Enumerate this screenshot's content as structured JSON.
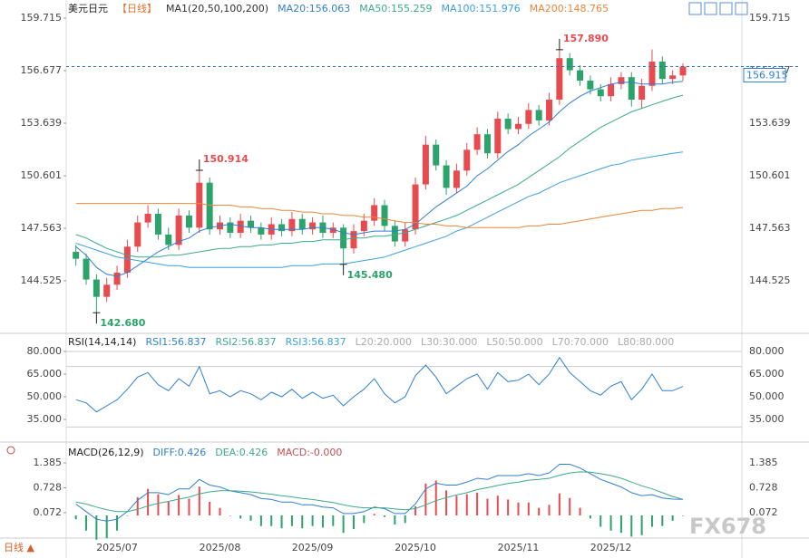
{
  "watermark": "FX678",
  "footer": "日线 ▲",
  "chart_data": [
    {
      "type": "candlestick",
      "title": "美元日元",
      "period": "【日线】",
      "indicator": "MA1(20,50,100,200)",
      "up_color": "#e84b4f",
      "down_color": "#2ba36a",
      "categories": [
        null,
        null,
        null,
        null,
        "2025/07",
        null,
        null,
        null,
        null,
        null,
        null,
        null,
        null,
        null,
        "2025/08",
        null,
        null,
        null,
        null,
        null,
        null,
        null,
        null,
        "2025/09",
        null,
        null,
        null,
        null,
        null,
        null,
        null,
        null,
        null,
        "2025/10",
        null,
        null,
        null,
        null,
        null,
        null,
        null,
        null,
        null,
        "2025/11",
        null,
        null,
        null,
        null,
        null,
        null,
        null,
        null,
        "2025/12",
        null,
        null,
        null,
        null,
        null,
        null,
        null
      ],
      "open": [
        146.2,
        145.8,
        144.6,
        143.6,
        144.3,
        145.0,
        146.5,
        147.9,
        148.4,
        147.2,
        146.6,
        148.3,
        147.6,
        150.2,
        147.5,
        147.9,
        147.3,
        148.0,
        147.6,
        147.2,
        147.8,
        147.4,
        148.1,
        147.5,
        147.9,
        147.3,
        147.6,
        146.4,
        147.4,
        148.0,
        148.9,
        147.7,
        146.8,
        147.5,
        150.1,
        152.4,
        151.2,
        149.9,
        150.9,
        152.1,
        153.0,
        151.9,
        153.9,
        153.3,
        153.6,
        154.4,
        153.8,
        155.0,
        157.4,
        156.7,
        156.1,
        155.6,
        155.2,
        155.9,
        156.3,
        155.0,
        155.8,
        157.2,
        156.2,
        156.4
      ],
      "high": [
        146.6,
        146.1,
        144.9,
        144.7,
        145.4,
        146.9,
        148.3,
        148.9,
        148.7,
        147.6,
        148.7,
        148.6,
        150.914,
        150.5,
        148.3,
        148.2,
        148.4,
        148.3,
        147.9,
        148.2,
        148.1,
        148.5,
        148.4,
        148.2,
        148.3,
        147.9,
        147.8,
        147.8,
        148.4,
        149.3,
        149.2,
        148.0,
        147.9,
        150.5,
        152.9,
        152.7,
        151.5,
        151.3,
        152.5,
        153.4,
        153.3,
        154.3,
        154.2,
        154.0,
        154.8,
        154.7,
        155.4,
        157.89,
        157.7,
        157.0,
        156.4,
        155.9,
        156.3,
        156.6,
        156.6,
        156.2,
        157.9,
        157.5,
        156.7,
        157.1
      ],
      "low": [
        145.4,
        144.3,
        142.68,
        143.3,
        144.0,
        144.7,
        146.2,
        147.6,
        146.9,
        146.3,
        146.3,
        147.3,
        147.3,
        147.2,
        147.2,
        147.0,
        147.0,
        147.3,
        146.9,
        146.9,
        147.1,
        147.1,
        147.2,
        147.2,
        147.0,
        147.0,
        145.48,
        146.1,
        147.1,
        147.7,
        147.4,
        146.5,
        146.5,
        147.2,
        149.8,
        150.9,
        149.5,
        149.6,
        150.6,
        151.8,
        151.6,
        151.6,
        153.0,
        153.0,
        153.3,
        153.5,
        153.5,
        154.7,
        156.4,
        155.8,
        155.3,
        154.9,
        154.9,
        155.6,
        154.6,
        154.5,
        155.5,
        155.9,
        155.9,
        156.1
      ],
      "close": [
        145.8,
        144.6,
        143.6,
        144.3,
        145.0,
        146.5,
        147.9,
        148.4,
        147.2,
        146.6,
        148.3,
        147.6,
        150.2,
        147.5,
        147.9,
        147.3,
        148.0,
        147.6,
        147.2,
        147.8,
        147.4,
        148.1,
        147.5,
        147.9,
        147.3,
        147.6,
        146.4,
        147.4,
        148.0,
        148.9,
        147.7,
        146.8,
        147.5,
        150.1,
        152.4,
        151.2,
        149.9,
        150.9,
        152.1,
        153.0,
        151.9,
        153.9,
        153.3,
        153.6,
        154.4,
        153.8,
        155.0,
        157.4,
        156.7,
        156.1,
        155.6,
        155.2,
        155.9,
        156.3,
        155.0,
        155.8,
        157.2,
        156.2,
        156.4,
        156.915
      ],
      "series": [
        {
          "name": "MA20:156.063",
          "color": "#2f7fd0",
          "values": [
            146.5,
            146.0,
            145.3,
            144.9,
            144.8,
            145.0,
            145.4,
            145.8,
            146.2,
            146.5,
            146.8,
            147.0,
            147.4,
            147.6,
            147.7,
            147.8,
            147.7,
            147.6,
            147.6,
            147.5,
            147.5,
            147.5,
            147.5,
            147.6,
            147.6,
            147.5,
            147.3,
            147.2,
            147.3,
            147.4,
            147.4,
            147.4,
            147.5,
            147.8,
            148.3,
            148.8,
            149.2,
            149.6,
            150.0,
            150.6,
            151.0,
            151.5,
            152.0,
            152.4,
            152.9,
            153.3,
            153.7,
            154.3,
            154.8,
            155.2,
            155.5,
            155.7,
            155.9,
            156.0,
            156.0,
            155.9,
            155.9,
            155.9,
            156.0,
            156.063
          ]
        },
        {
          "name": "MA50:155.259",
          "color": "#3caa8c",
          "values": [
            147.2,
            147.0,
            146.7,
            146.4,
            146.2,
            146.0,
            145.9,
            145.9,
            145.9,
            146.0,
            146.0,
            146.1,
            146.2,
            146.3,
            146.4,
            146.4,
            146.5,
            146.5,
            146.6,
            146.6,
            146.7,
            146.7,
            146.8,
            146.8,
            146.9,
            146.9,
            146.9,
            147.0,
            147.0,
            147.1,
            147.1,
            147.2,
            147.3,
            147.5,
            147.7,
            147.9,
            148.1,
            148.3,
            148.6,
            148.9,
            149.2,
            149.5,
            149.8,
            150.1,
            150.5,
            150.9,
            151.3,
            151.7,
            152.2,
            152.6,
            153.0,
            153.4,
            153.7,
            154.0,
            154.3,
            154.5,
            154.7,
            154.9,
            155.1,
            155.259
          ]
        },
        {
          "name": "MA100:151.976",
          "color": "#3aa0e0",
          "values": [
            146.7,
            146.5,
            146.3,
            146.1,
            145.9,
            145.8,
            145.7,
            145.6,
            145.5,
            145.4,
            145.4,
            145.3,
            145.3,
            145.3,
            145.3,
            145.3,
            145.3,
            145.3,
            145.3,
            145.3,
            145.3,
            145.4,
            145.4,
            145.4,
            145.5,
            145.5,
            145.5,
            145.6,
            145.7,
            145.8,
            145.9,
            146.1,
            146.3,
            146.5,
            146.7,
            146.9,
            147.1,
            147.4,
            147.6,
            147.9,
            148.2,
            148.5,
            148.8,
            149.1,
            149.4,
            149.6,
            149.9,
            150.2,
            150.4,
            150.6,
            150.8,
            151.0,
            151.2,
            151.3,
            151.5,
            151.6,
            151.7,
            151.8,
            151.9,
            151.976
          ]
        },
        {
          "name": "MA200:148.765",
          "color": "#e8863a",
          "values": [
            149.0,
            149.0,
            149.0,
            149.0,
            149.0,
            149.0,
            149.0,
            149.0,
            149.0,
            149.0,
            149.0,
            149.0,
            149.0,
            148.9,
            148.9,
            148.9,
            148.8,
            148.8,
            148.7,
            148.7,
            148.6,
            148.6,
            148.5,
            148.5,
            148.4,
            148.4,
            148.3,
            148.3,
            148.2,
            148.2,
            148.1,
            148.0,
            147.9,
            147.9,
            147.8,
            147.8,
            147.7,
            147.7,
            147.6,
            147.6,
            147.6,
            147.6,
            147.6,
            147.6,
            147.7,
            147.7,
            147.8,
            147.8,
            147.9,
            148.0,
            148.1,
            148.2,
            148.3,
            148.4,
            148.5,
            148.6,
            148.6,
            148.7,
            148.7,
            148.765
          ]
        }
      ],
      "ylim": [
        141.487,
        160.763
      ],
      "yticks": [
        144.525,
        147.563,
        150.601,
        153.639,
        156.677,
        159.715
      ],
      "annotations": [
        {
          "value": 157.89,
          "label": "157.890"
        },
        {
          "value": 150.914,
          "label": "150.914"
        },
        {
          "value": 145.48,
          "label": "145.480"
        },
        {
          "value": 142.68,
          "label": "142.680"
        }
      ],
      "last_price": {
        "value": 156.915,
        "label": "156.915"
      }
    },
    {
      "type": "line",
      "title": "RSI(14,14,14)",
      "series": [
        {
          "name": "RSI1:56.837",
          "color": "#2f7fd0",
          "values": [
            48,
            46,
            40,
            44,
            48,
            55,
            63,
            66,
            58,
            54,
            62,
            57,
            70,
            52,
            54,
            50,
            54,
            52,
            48,
            53,
            50,
            55,
            49,
            53,
            49,
            51,
            44,
            50,
            55,
            62,
            52,
            46,
            50,
            64,
            71,
            63,
            52,
            57,
            62,
            65,
            55,
            66,
            60,
            61,
            65,
            58,
            65,
            76,
            66,
            60,
            54,
            51,
            57,
            60,
            48,
            55,
            65,
            54,
            54,
            56.837
          ]
        }
      ],
      "legend_items": [
        {
          "name": "RSI2:56.837",
          "color": "#3caa8c"
        },
        {
          "name": "RSI3:56.837",
          "color": "#3aa0e0"
        }
      ],
      "levels": [
        {
          "value": 20,
          "label": "L20:20.000"
        },
        {
          "value": 30,
          "label": "L30:30.000"
        },
        {
          "value": 50,
          "label": "L50:50.000"
        },
        {
          "value": 70,
          "label": "L70:70.000"
        },
        {
          "value": 80,
          "label": "L80:80.000"
        }
      ],
      "ylim": [
        21.8,
        90.8
      ],
      "yticks": [
        {
          "value": 35,
          "label": "35.000"
        },
        {
          "value": 50,
          "label": "50.000"
        },
        {
          "value": 65,
          "label": "65.000"
        },
        {
          "value": 80,
          "label": "80.000"
        }
      ]
    },
    {
      "type": "macd",
      "title": "MACD(26,12,9)",
      "up_color": "#e84b4f",
      "down_color": "#2ba36a",
      "series": [
        {
          "name": "DIFF:0.426",
          "color": "#2f7fd0",
          "values": [
            0.3,
            0.1,
            -0.1,
            -0.15,
            -0.1,
            0.1,
            0.4,
            0.6,
            0.6,
            0.55,
            0.7,
            0.7,
            0.95,
            0.8,
            0.75,
            0.65,
            0.6,
            0.55,
            0.45,
            0.42,
            0.35,
            0.35,
            0.28,
            0.28,
            0.22,
            0.2,
            0.05,
            0.05,
            0.1,
            0.22,
            0.18,
            0.05,
            0.05,
            0.3,
            0.7,
            0.85,
            0.8,
            0.8,
            0.88,
            0.98,
            0.95,
            1.05,
            1.05,
            1.05,
            1.1,
            1.05,
            1.12,
            1.35,
            1.35,
            1.25,
            1.1,
            0.95,
            0.85,
            0.75,
            0.6,
            0.52,
            0.55,
            0.46,
            0.43,
            0.426
          ]
        },
        {
          "name": "DEA:0.426",
          "color": "#3caa8c",
          "values": [
            0.35,
            0.3,
            0.22,
            0.15,
            0.1,
            0.1,
            0.16,
            0.25,
            0.32,
            0.37,
            0.43,
            0.48,
            0.57,
            0.62,
            0.65,
            0.65,
            0.64,
            0.62,
            0.59,
            0.56,
            0.52,
            0.49,
            0.45,
            0.42,
            0.38,
            0.34,
            0.28,
            0.23,
            0.2,
            0.2,
            0.2,
            0.17,
            0.15,
            0.18,
            0.28,
            0.39,
            0.47,
            0.54,
            0.6,
            0.68,
            0.73,
            0.79,
            0.84,
            0.88,
            0.93,
            0.95,
            0.98,
            1.06,
            1.12,
            1.15,
            1.14,
            1.1,
            1.05,
            0.98,
            0.88,
            0.78,
            0.7,
            0.6,
            0.5,
            0.426
          ]
        }
      ],
      "histogram": {
        "name": "MACD:-0.000",
        "values": [
          -0.1,
          -0.4,
          -0.64,
          -0.6,
          -0.4,
          0,
          0.48,
          0.7,
          0.56,
          0.36,
          0.54,
          0.44,
          0.76,
          0.36,
          0.2,
          0,
          -0.08,
          -0.14,
          -0.28,
          -0.28,
          -0.34,
          -0.28,
          -0.34,
          -0.28,
          -0.32,
          -0.28,
          -0.46,
          -0.36,
          -0.2,
          0.04,
          -0.04,
          -0.24,
          -0.2,
          0.24,
          0.84,
          0.92,
          0.66,
          0.52,
          0.56,
          0.6,
          0.44,
          0.52,
          0.42,
          0.34,
          0.34,
          0.2,
          0.28,
          0.58,
          0.46,
          0.2,
          -0.08,
          -0.3,
          -0.4,
          -0.46,
          -0.56,
          -0.52,
          -0.3,
          -0.28,
          -0.14,
          0
        ]
      },
      "ylim": [
        -0.621,
        1.887
      ],
      "yticks": [
        0.072,
        0.728,
        1.385
      ]
    }
  ]
}
